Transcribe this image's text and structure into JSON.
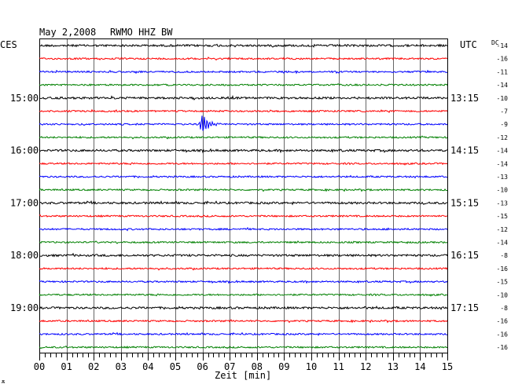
{
  "header": {
    "date": "May 2,2008",
    "station": "RWMO HHZ BW",
    "left_zone": "CES",
    "right_zone": "UTC",
    "dc_label": "DC"
  },
  "footer": {
    "xlabel": "Zeit [min]",
    "corner_mark": "ѫ"
  },
  "colors": {
    "cycle": [
      "#000000",
      "#ff0000",
      "#0000ff",
      "#008000"
    ],
    "grid": "#000000",
    "background": "#ffffff"
  },
  "chart_data": {
    "type": "line",
    "title": "May 2,2008   RWMO HHZ BW",
    "xlabel": "Zeit [min]",
    "x_ticks": [
      "00",
      "01",
      "02",
      "03",
      "04",
      "05",
      "06",
      "07",
      "08",
      "09",
      "10",
      "11",
      "12",
      "13",
      "14",
      "15"
    ],
    "xlim": [
      0,
      15
    ],
    "left_hour_labels": [
      {
        "trace": 4,
        "label": "15:00"
      },
      {
        "trace": 8,
        "label": "16:00"
      },
      {
        "trace": 12,
        "label": "17:00"
      },
      {
        "trace": 16,
        "label": "18:00"
      },
      {
        "trace": 20,
        "label": "19:00"
      }
    ],
    "right_hour_labels": [
      {
        "trace": 4,
        "label": "13:15"
      },
      {
        "trace": 8,
        "label": "14:15"
      },
      {
        "trace": 12,
        "label": "15:15"
      },
      {
        "trace": 16,
        "label": "16:15"
      },
      {
        "trace": 20,
        "label": "17:15"
      }
    ],
    "dc_offsets": [
      -14,
      -16,
      -11,
      -14,
      -10,
      -7,
      -9,
      -12,
      -14,
      -14,
      -13,
      -10,
      -13,
      -15,
      -12,
      -14,
      -8,
      -16,
      -15,
      -10,
      -8,
      -16,
      -16,
      -16
    ],
    "events": [
      {
        "trace": 6,
        "minute": 6.0,
        "amplitude": "large",
        "color": "#0000ff"
      }
    ]
  }
}
